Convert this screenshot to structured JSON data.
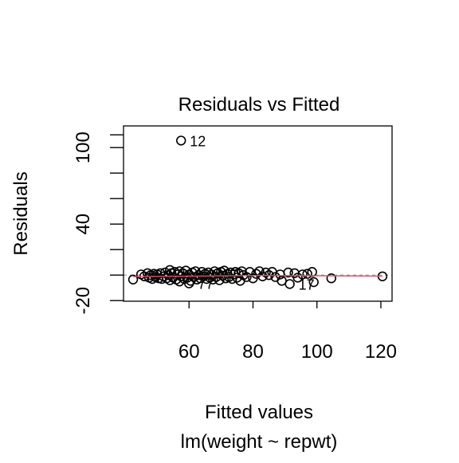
{
  "chart_data": {
    "type": "scatter",
    "title": "Residuals vs Fitted",
    "xlabel": "Fitted values",
    "subtitle": "lm(weight ~ repwt)",
    "ylabel": "Residuals",
    "xlim": [
      39.5,
      123.5
    ],
    "ylim": [
      -20.5,
      117
    ],
    "x_ticks": [
      {
        "value": 60,
        "label": "60"
      },
      {
        "value": 80,
        "label": "80"
      },
      {
        "value": 100,
        "label": "100"
      },
      {
        "value": 120,
        "label": "120"
      }
    ],
    "y_ticks_labeled": [
      {
        "value": -20,
        "label": "-20"
      },
      {
        "value": 40,
        "label": "40"
      },
      {
        "value": 100,
        "label": "100"
      }
    ],
    "y_ticks_minor": [
      0,
      20,
      60,
      80,
      110
    ],
    "smoother_color": "#DF536B",
    "zero_line": true,
    "grid": false,
    "legend": "none",
    "outliers": [
      {
        "x": 57.5,
        "y": 105.5,
        "label": "12"
      },
      {
        "x": 60.0,
        "y": -6.5,
        "label": "77"
      },
      {
        "x": 91.5,
        "y": -7.0,
        "label": "17"
      }
    ],
    "points": [
      [
        42.5,
        -3.5
      ],
      [
        45.0,
        0.5
      ],
      [
        46.0,
        -1.0
      ],
      [
        47.0,
        1.5
      ],
      [
        47.5,
        -2.0
      ],
      [
        48.0,
        0.0
      ],
      [
        48.5,
        -3.0
      ],
      [
        49.0,
        1.0
      ],
      [
        49.5,
        -1.5
      ],
      [
        50.0,
        0.5
      ],
      [
        50.5,
        -2.5
      ],
      [
        51.0,
        1.5
      ],
      [
        51.5,
        -3.0
      ],
      [
        52.0,
        -1.0
      ],
      [
        52.5,
        2.0
      ],
      [
        53.0,
        -2.5
      ],
      [
        53.5,
        0.0
      ],
      [
        54.0,
        4.0
      ],
      [
        54.0,
        -4.0
      ],
      [
        54.5,
        1.5
      ],
      [
        55.0,
        -2.0
      ],
      [
        55.5,
        2.5
      ],
      [
        56.0,
        -3.5
      ],
      [
        56.5,
        0.5
      ],
      [
        57.0,
        3.0
      ],
      [
        57.0,
        -5.0
      ],
      [
        57.5,
        -1.0
      ],
      [
        58.0,
        1.5
      ],
      [
        58.5,
        -3.0
      ],
      [
        59.0,
        3.5
      ],
      [
        59.5,
        -2.0
      ],
      [
        60.0,
        0.5
      ],
      [
        60.5,
        -4.5
      ],
      [
        61.0,
        2.0
      ],
      [
        61.5,
        -1.5
      ],
      [
        62.0,
        3.0
      ],
      [
        62.5,
        -3.5
      ],
      [
        63.0,
        0.0
      ],
      [
        63.5,
        -2.5
      ],
      [
        64.0,
        2.5
      ],
      [
        64.5,
        -1.0
      ],
      [
        65.0,
        1.0
      ],
      [
        65.5,
        -3.0
      ],
      [
        66.0,
        2.0
      ],
      [
        66.5,
        -2.0
      ],
      [
        67.0,
        0.5
      ],
      [
        67.5,
        -3.5
      ],
      [
        68.0,
        3.0
      ],
      [
        68.5,
        -1.5
      ],
      [
        69.0,
        1.5
      ],
      [
        69.5,
        -4.0
      ],
      [
        70.0,
        2.5
      ],
      [
        70.5,
        -0.5
      ],
      [
        71.0,
        3.5
      ],
      [
        71.5,
        -2.5
      ],
      [
        72.0,
        1.0
      ],
      [
        72.5,
        -1.5
      ],
      [
        73.0,
        2.0
      ],
      [
        73.5,
        -3.0
      ],
      [
        74.0,
        0.5
      ],
      [
        74.5,
        2.5
      ],
      [
        75.0,
        -2.0
      ],
      [
        75.5,
        1.5
      ],
      [
        76.0,
        -4.5
      ],
      [
        76.5,
        3.0
      ],
      [
        77.0,
        0.0
      ],
      [
        78.0,
        -1.5
      ],
      [
        79.0,
        2.5
      ],
      [
        80.0,
        -2.5
      ],
      [
        81.0,
        1.0
      ],
      [
        82.0,
        3.0
      ],
      [
        83.0,
        -1.0
      ],
      [
        84.0,
        2.0
      ],
      [
        85.0,
        0.0
      ],
      [
        86.0,
        2.5
      ],
      [
        87.0,
        -1.5
      ],
      [
        88.5,
        0.5
      ],
      [
        89.0,
        -4.5
      ],
      [
        91.0,
        2.0
      ],
      [
        93.0,
        1.5
      ],
      [
        94.0,
        -2.0
      ],
      [
        95.5,
        0.5
      ],
      [
        97.0,
        1.0
      ],
      [
        98.5,
        2.5
      ],
      [
        99.0,
        -5.5
      ],
      [
        104.5,
        -2.5
      ],
      [
        120.5,
        -1.0
      ]
    ],
    "smoother": [
      [
        42.5,
        -1.2
      ],
      [
        60.0,
        -0.9
      ],
      [
        80.0,
        -0.3
      ],
      [
        100.0,
        -0.5
      ],
      [
        120.5,
        -0.8
      ]
    ]
  }
}
